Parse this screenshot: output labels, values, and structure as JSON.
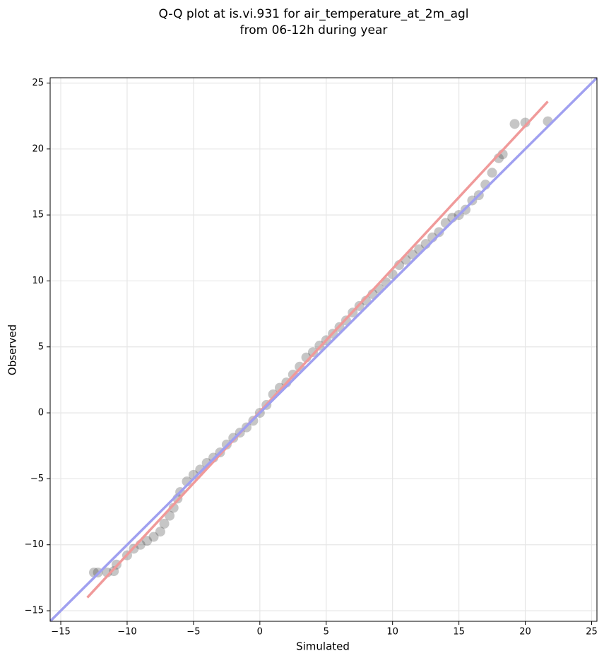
{
  "chart_data": {
    "type": "scatter",
    "title": [
      "Q-Q plot at is.vi.931 for air_temperature_at_2m_agl",
      "from 06-12h during year"
    ],
    "xlabel": "Simulated",
    "ylabel": "Observed",
    "xlim": [
      -15.8,
      25.4
    ],
    "ylim": [
      -15.8,
      25.4
    ],
    "xticks": [
      {
        "value": -15,
        "label": "−15"
      },
      {
        "value": -10,
        "label": "−10"
      },
      {
        "value": -5,
        "label": "−5"
      },
      0,
      5,
      10,
      15,
      20,
      25
    ],
    "yticks": [
      {
        "value": -15,
        "label": "−15"
      },
      {
        "value": -10,
        "label": "−10"
      },
      {
        "value": -5,
        "label": "−5"
      },
      0,
      5,
      10,
      15,
      20,
      25
    ],
    "grid": true,
    "series": [
      {
        "kind": "scatter",
        "color": "#333333",
        "x": [
          -12.5,
          -12.2,
          -11.5,
          -11,
          -10.8,
          -10,
          -9.5,
          -9,
          -8.5,
          -8,
          -7.5,
          -7.2,
          -6.8,
          -6.5,
          -6.2,
          -6,
          -5.5,
          -5,
          -4.5,
          -4,
          -3.5,
          -3,
          -2.5,
          -2,
          -1.5,
          -1,
          -0.5,
          0,
          0.5,
          1,
          1.5,
          2,
          2.5,
          3,
          3.5,
          4,
          4.5,
          5,
          5.5,
          6,
          6.5,
          7,
          7.5,
          8,
          8.5,
          9,
          9.5,
          10,
          10.5,
          11,
          11.5,
          12,
          12.5,
          13,
          13.5,
          14,
          14.5,
          15,
          15.5,
          16,
          16.5,
          17,
          17.5,
          18,
          18.3,
          19.2,
          20,
          21.7
        ],
        "values": [
          -12.1,
          -12.1,
          -12.1,
          -12,
          -11.5,
          -10.8,
          -10.3,
          -10,
          -9.7,
          -9.4,
          -9,
          -8.4,
          -7.8,
          -7.2,
          -6.5,
          -6,
          -5.2,
          -4.7,
          -4.3,
          -3.8,
          -3.4,
          -3,
          -2.4,
          -1.9,
          -1.5,
          -1.1,
          -0.6,
          0,
          0.6,
          1.4,
          1.9,
          2.3,
          2.9,
          3.5,
          4.2,
          4.6,
          5.1,
          5.5,
          6,
          6.5,
          7,
          7.6,
          8.1,
          8.5,
          9,
          9.4,
          9.9,
          10.5,
          11.2,
          11.6,
          12,
          12.4,
          12.8,
          13.3,
          13.7,
          14.4,
          14.8,
          15,
          15.4,
          16.1,
          16.5,
          17.3,
          18.2,
          19.3,
          19.6,
          21.9,
          22,
          22.1
        ]
      },
      {
        "kind": "line",
        "color": "#f09a9a",
        "x": [
          -13,
          21.7
        ],
        "values": [
          -14,
          23.6
        ]
      },
      {
        "kind": "line",
        "color": "#a0a0f0",
        "x": [
          -15.8,
          25.4
        ],
        "values": [
          -15.8,
          25.4
        ]
      }
    ]
  }
}
